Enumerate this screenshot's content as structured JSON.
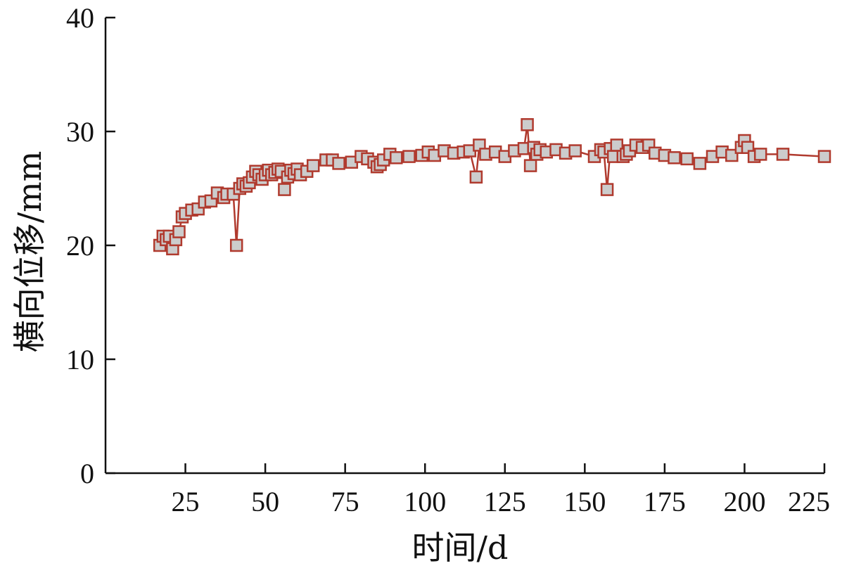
{
  "chart_data": {
    "type": "line",
    "xlabel": "时间/d",
    "ylabel": "横向位移/mm",
    "xlim": [
      0,
      225
    ],
    "ylim": [
      0,
      40
    ],
    "xticks": [
      25,
      50,
      75,
      100,
      125,
      150,
      175,
      200,
      225
    ],
    "yticks": [
      0,
      10,
      20,
      30,
      40
    ],
    "grid": false,
    "colors": {
      "line": "#B03A2E",
      "marker_fill": "#CCCCCC",
      "marker_edge": "#B03A2E",
      "axis": "#111111"
    },
    "series": [
      {
        "marker": "square",
        "x": [
          17,
          18,
          19,
          20,
          21,
          22,
          23,
          24,
          25,
          27,
          29,
          31,
          33,
          35,
          37,
          38,
          40,
          41,
          42,
          43,
          44,
          45,
          46,
          47,
          48,
          49,
          50,
          51,
          52,
          53,
          54,
          55,
          56,
          57,
          58,
          59,
          60,
          61,
          63,
          65,
          69,
          71,
          73,
          77,
          80,
          82,
          84,
          85,
          86,
          87,
          89,
          91,
          95,
          99,
          101,
          103,
          106,
          109,
          112,
          114,
          116,
          117,
          119,
          122,
          125,
          128,
          131,
          132,
          133,
          134,
          135,
          136,
          138,
          141,
          144,
          147,
          153,
          155,
          156,
          157,
          158,
          159,
          160,
          162,
          163,
          164,
          166,
          168,
          170,
          172,
          175,
          178,
          182,
          186,
          190,
          193,
          196,
          199,
          200,
          201,
          203,
          205,
          212,
          225
        ],
        "y": [
          20.0,
          20.8,
          20.5,
          20.8,
          19.7,
          20.5,
          21.2,
          22.5,
          22.8,
          23.1,
          23.2,
          23.8,
          23.9,
          24.6,
          24.2,
          24.5,
          24.5,
          20.0,
          25.0,
          25.4,
          25.2,
          25.5,
          26.0,
          26.5,
          26.2,
          25.8,
          26.2,
          26.6,
          26.2,
          26.4,
          26.7,
          26.5,
          24.9,
          26.0,
          26.6,
          26.3,
          26.7,
          26.2,
          26.5,
          27.0,
          27.5,
          27.5,
          27.2,
          27.3,
          27.8,
          27.6,
          27.3,
          26.9,
          27.1,
          27.5,
          28.0,
          27.7,
          27.8,
          27.9,
          28.2,
          27.9,
          28.3,
          28.1,
          28.2,
          28.3,
          26.0,
          28.8,
          28.0,
          28.2,
          27.8,
          28.3,
          28.5,
          30.6,
          27.0,
          28.6,
          28.0,
          28.4,
          28.2,
          28.4,
          28.1,
          28.3,
          27.8,
          28.4,
          28.2,
          24.9,
          28.5,
          27.8,
          28.8,
          27.8,
          28.0,
          28.3,
          28.8,
          28.6,
          28.8,
          28.1,
          27.9,
          27.7,
          27.6,
          27.2,
          27.8,
          28.2,
          27.9,
          28.6,
          29.2,
          28.6,
          27.8,
          28.0,
          28.0,
          27.8
        ]
      }
    ]
  }
}
